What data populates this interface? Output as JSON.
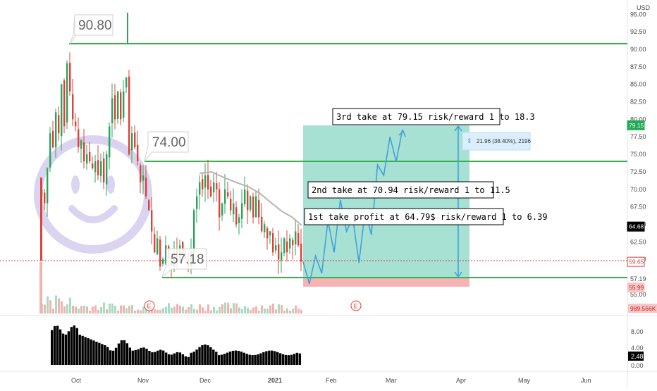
{
  "currency": "USD",
  "price_axis": {
    "ticks": [
      "95.00",
      "92.50",
      "90.00",
      "87.50",
      "85.00",
      "82.50",
      "80.00",
      "77.50",
      "75.00",
      "72.50",
      "70.00",
      "67.50",
      "65.00",
      "62.50",
      "60.00",
      "57.19",
      "55.00"
    ],
    "badges": [
      {
        "label": "79.15",
        "color": "#21a957",
        "text": "#ffffff"
      },
      {
        "label": "64.68",
        "color": "#000000",
        "text": "#ffffff"
      },
      {
        "label": "59.65",
        "color": "#ffffff",
        "text": "#e0403a",
        "border": "#e0403a"
      },
      {
        "label": "55.99",
        "color": "#f7c7c7",
        "text": "#d02020"
      }
    ]
  },
  "volume_axis": {
    "badge": "989.566K"
  },
  "indicator_axis": {
    "ticks": [
      "8.00",
      "4.00",
      "0.00"
    ],
    "badge": "2.48"
  },
  "x_axis": {
    "labels": [
      "Oct",
      "Nov",
      "Dec",
      "2021",
      "Feb",
      "Mar",
      "Apr",
      "May",
      "Jun"
    ]
  },
  "level_labels": [
    "90.80",
    "74.00",
    "57.18"
  ],
  "annotations": {
    "take1": "1st take profit at 64.79$ risk/reward 1 to 6.39",
    "take2": "2nd take at 70.94 risk/reward 1 to 11.5",
    "take3": "3rd take at 79.15 risk/reward 1 to 18.3",
    "range": "21.96 (38.40%), 2196"
  },
  "earnings_marker": "E",
  "colors": {
    "up": "#26a65b",
    "down": "#e0403a",
    "level": "#33b24a",
    "target": "#3c9ddb",
    "zone": "#5cc9ae",
    "stop": "#f4a6a6"
  },
  "chart_data": {
    "type": "candlestick",
    "price_range": [
      54.5,
      95
    ],
    "horizontal_levels": [
      90.8,
      74.0,
      57.18
    ],
    "moving_average_end": 64.68,
    "last_close": 59.65,
    "trade_plan": {
      "entry": 59.65,
      "stop": 55.99,
      "targets": [
        64.79,
        70.94,
        79.15
      ],
      "risk_reward": [
        6.39,
        11.5,
        18.3
      ],
      "projection_path": [
        59.65,
        56.5,
        60.5,
        58.0,
        65.5,
        61.0,
        68.5,
        64.0,
        66.0,
        59.5,
        67.0,
        63.5,
        73.5,
        72.0,
        77.5,
        74.0,
        78.5
      ]
    },
    "indicator_last": 2.48
  }
}
